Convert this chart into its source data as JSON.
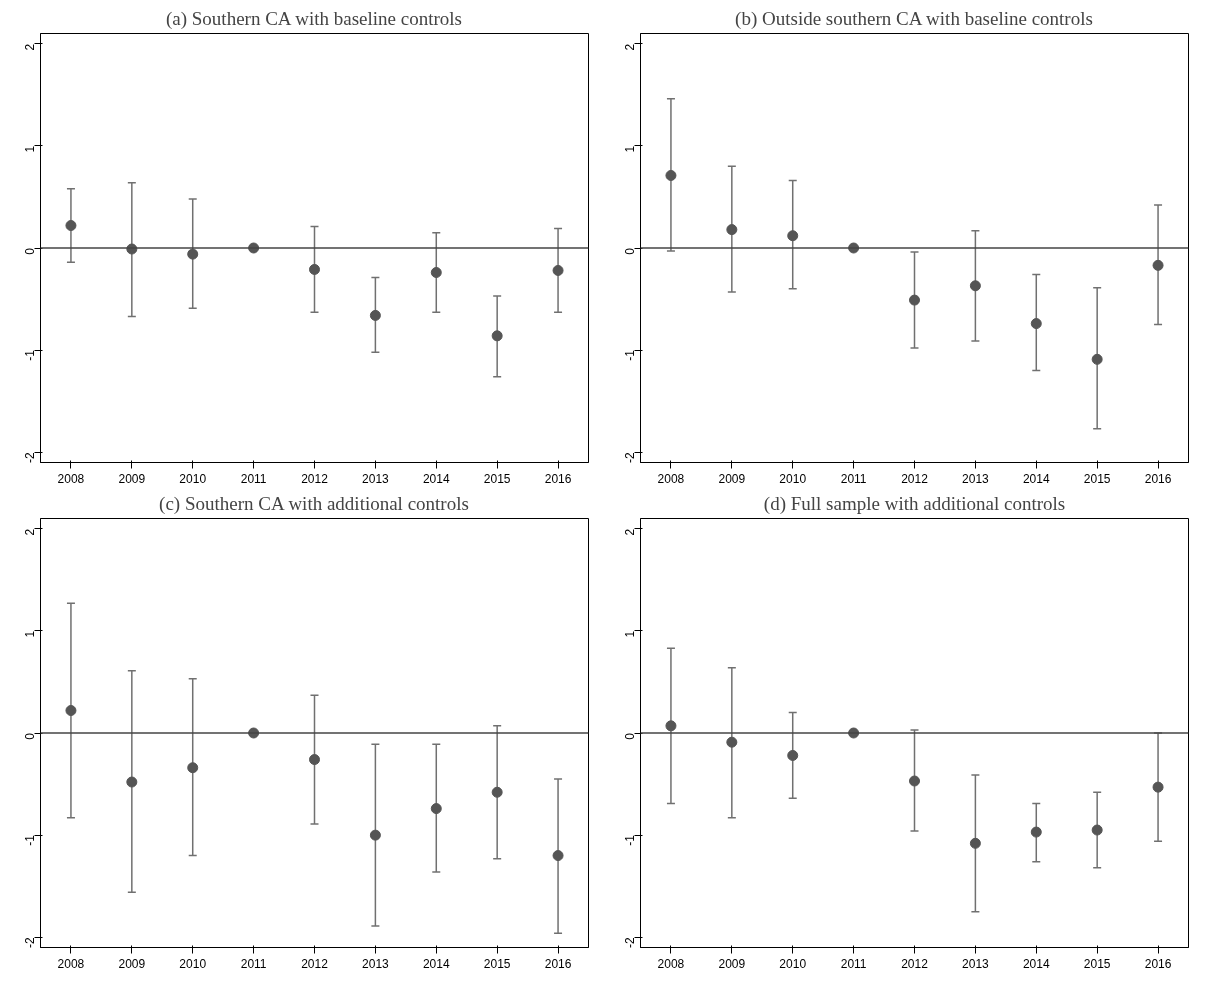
{
  "chart_data": [
    {
      "type": "scatter",
      "title": "(a) Southern CA with baseline controls",
      "categories": [
        "2008",
        "2009",
        "2010",
        "2011",
        "2012",
        "2013",
        "2014",
        "2015",
        "2016"
      ],
      "ylim": [
        -2.1,
        2.1
      ],
      "yticks": [
        -2,
        -1,
        0,
        1,
        2
      ],
      "marker": "circle",
      "grid": false,
      "ref_lines": [
        {
          "axis": "y",
          "value": 0,
          "label": null
        }
      ],
      "series": [
        {
          "color": "#555555",
          "values": [
            0.22,
            -0.01,
            -0.06,
            0,
            -0.21,
            -0.66,
            -0.24,
            -0.86,
            -0.22
          ],
          "errors": [
            [
              -0.14,
              0.58
            ],
            [
              -0.67,
              0.64
            ],
            [
              -0.59,
              0.48
            ],
            null,
            [
              -0.63,
              0.21
            ],
            [
              -1.02,
              -0.29
            ],
            [
              -0.63,
              0.15
            ],
            [
              -1.26,
              -0.47
            ],
            [
              -0.63,
              0.19
            ]
          ]
        }
      ]
    },
    {
      "type": "scatter",
      "title": "(b) Outside southern CA with baseline controls",
      "categories": [
        "2008",
        "2009",
        "2010",
        "2011",
        "2012",
        "2013",
        "2014",
        "2015",
        "2016"
      ],
      "ylim": [
        -2.1,
        2.1
      ],
      "yticks": [
        -2,
        -1,
        0,
        1,
        2
      ],
      "marker": "circle",
      "grid": false,
      "ref_lines": [
        {
          "axis": "y",
          "value": 0,
          "label": null
        }
      ],
      "series": [
        {
          "color": "#555555",
          "values": [
            0.71,
            0.18,
            0.12,
            0,
            -0.51,
            -0.37,
            -0.74,
            -1.09,
            -0.17
          ],
          "errors": [
            [
              -0.03,
              1.46
            ],
            [
              -0.43,
              0.8
            ],
            [
              -0.4,
              0.66
            ],
            null,
            [
              -0.98,
              -0.04
            ],
            [
              -0.91,
              0.17
            ],
            [
              -1.2,
              -0.26
            ],
            [
              -1.77,
              -0.39
            ],
            [
              -0.75,
              0.42
            ]
          ]
        }
      ]
    },
    {
      "type": "scatter",
      "title": "(c) Southern CA with additional controls",
      "categories": [
        "2008",
        "2009",
        "2010",
        "2011",
        "2012",
        "2013",
        "2014",
        "2015",
        "2016"
      ],
      "ylim": [
        -2.1,
        2.1
      ],
      "yticks": [
        -2,
        -1,
        0,
        1,
        2
      ],
      "marker": "circle",
      "grid": false,
      "ref_lines": [
        {
          "axis": "y",
          "value": 0,
          "label": null
        }
      ],
      "series": [
        {
          "color": "#555555",
          "values": [
            0.22,
            -0.48,
            -0.34,
            0,
            -0.26,
            -1.0,
            -0.74,
            -0.58,
            -1.2
          ],
          "errors": [
            [
              -0.83,
              1.27
            ],
            [
              -1.56,
              0.61
            ],
            [
              -1.2,
              0.53
            ],
            null,
            [
              -0.89,
              0.37
            ],
            [
              -1.89,
              -0.11
            ],
            [
              -1.36,
              -0.11
            ],
            [
              -1.23,
              0.07
            ],
            [
              -1.96,
              -0.45
            ]
          ]
        }
      ]
    },
    {
      "type": "scatter",
      "title": "(d) Full sample with additional controls",
      "categories": [
        "2008",
        "2009",
        "2010",
        "2011",
        "2012",
        "2013",
        "2014",
        "2015",
        "2016"
      ],
      "ylim": [
        -2.1,
        2.1
      ],
      "yticks": [
        -2,
        -1,
        0,
        1,
        2
      ],
      "marker": "circle",
      "grid": false,
      "ref_lines": [
        {
          "axis": "y",
          "value": 0,
          "label": null
        }
      ],
      "series": [
        {
          "color": "#555555",
          "values": [
            0.07,
            -0.09,
            -0.22,
            0,
            -0.47,
            -1.08,
            -0.97,
            -0.95,
            -0.53
          ],
          "errors": [
            [
              -0.69,
              0.83
            ],
            [
              -0.83,
              0.64
            ],
            [
              -0.64,
              0.2
            ],
            null,
            [
              -0.96,
              0.03
            ],
            [
              -1.75,
              -0.41
            ],
            [
              -1.26,
              -0.69
            ],
            [
              -1.32,
              -0.58
            ],
            [
              -1.06,
              0.0
            ]
          ]
        }
      ]
    }
  ]
}
